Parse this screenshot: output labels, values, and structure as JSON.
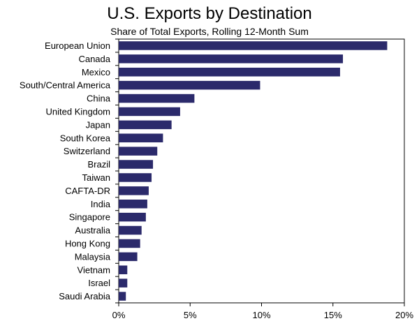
{
  "chart_data": {
    "type": "bar",
    "orientation": "horizontal",
    "title": "U.S. Exports by Destination",
    "subtitle": "Share of Total Exports, Rolling 12-Month Sum",
    "xlabel": "",
    "ylabel": "",
    "xlim": [
      0,
      20
    ],
    "x_ticks": [
      0,
      5,
      10,
      15,
      20
    ],
    "x_tick_labels": [
      "0%",
      "5%",
      "10%",
      "15%",
      "20%"
    ],
    "grid": false,
    "legend": "none",
    "bar_color": "#2b2a6b",
    "categories": [
      "European Union",
      "Canada",
      "Mexico",
      "South/Central America",
      "China",
      "United Kingdom",
      "Japan",
      "South Korea",
      "Switzerland",
      "Brazil",
      "Taiwan",
      "CAFTA-DR",
      "India",
      "Singapore",
      "Australia",
      "Hong Kong",
      "Malaysia",
      "Vietnam",
      "Israel",
      "Saudi Arabia"
    ],
    "values": [
      18.8,
      15.7,
      15.5,
      9.9,
      5.3,
      4.3,
      3.7,
      3.1,
      2.7,
      2.4,
      2.3,
      2.1,
      2.0,
      1.9,
      1.6,
      1.5,
      1.3,
      0.6,
      0.6,
      0.5
    ]
  }
}
